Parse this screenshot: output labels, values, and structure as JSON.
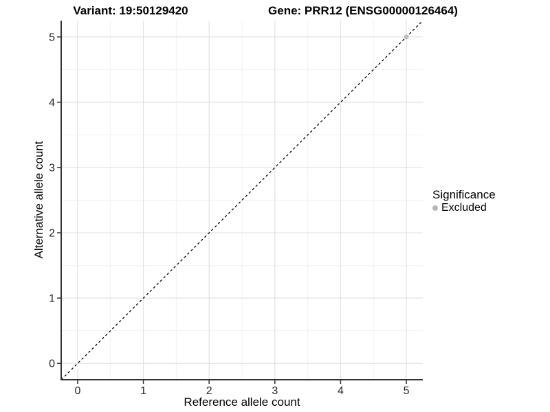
{
  "titles": {
    "left": "Variant: 19:50129420",
    "right": "Gene: PRR12 (ENSG00000126464)"
  },
  "chart_data": {
    "type": "scatter",
    "xlabel": "Reference allele count",
    "ylabel": "Alternative allele count",
    "xlim": [
      -0.25,
      5.25
    ],
    "ylim": [
      -0.25,
      5.25
    ],
    "xticks": [
      0,
      1,
      2,
      3,
      4,
      5
    ],
    "yticks": [
      0,
      1,
      2,
      3,
      4,
      5
    ],
    "xminor": [
      0.5,
      1.5,
      2.5,
      3.5,
      4.5
    ],
    "yminor": [
      0.5,
      1.5,
      2.5,
      3.5,
      4.5
    ],
    "grid": "on",
    "points": [
      {
        "x": 5,
        "y": 5,
        "series": "Excluded"
      }
    ],
    "abline": {
      "slope": 1,
      "intercept": 0,
      "linetype": "dashed",
      "color": "#000000"
    },
    "legend": {
      "title": "Significance",
      "position": "right",
      "items": [
        {
          "label": "Excluded",
          "color": "#b8b8b8"
        }
      ]
    },
    "colors": {
      "point": "#bdbdbd",
      "grid_major": "#e2e2e2",
      "grid_minor": "#f0f0f0",
      "axis": "#333333"
    }
  }
}
